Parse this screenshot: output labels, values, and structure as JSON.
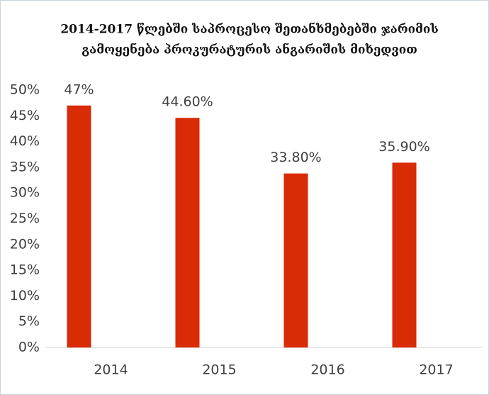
{
  "chart_data": {
    "type": "bar",
    "title": [
      "2014-2017 წლებში საპროცესო შეთანხმებებში ჯარიმის",
      "გამოყენება პროკურატურის ანგარიშის მიხედვით"
    ],
    "categories": [
      "2014",
      "2015",
      "2016",
      "2017"
    ],
    "values": [
      47,
      44.6,
      33.8,
      35.9
    ],
    "value_labels": [
      "47%",
      "44.60%",
      "33.80%",
      "35.90%"
    ],
    "color": "#d92b06",
    "ylim": [
      0,
      50
    ],
    "yticks": [
      {
        "value": 0,
        "label": "0%"
      },
      {
        "value": 5,
        "label": "5%"
      },
      {
        "value": 10,
        "label": "10%"
      },
      {
        "value": 15,
        "label": "15%"
      },
      {
        "value": 20,
        "label": "20%"
      },
      {
        "value": 25,
        "label": "25%"
      },
      {
        "value": 30,
        "label": "30%"
      },
      {
        "value": 35,
        "label": "35%"
      },
      {
        "value": 40,
        "label": "40%"
      },
      {
        "value": 45,
        "label": "45%"
      },
      {
        "value": 50,
        "label": "50%"
      }
    ],
    "grid": false
  }
}
